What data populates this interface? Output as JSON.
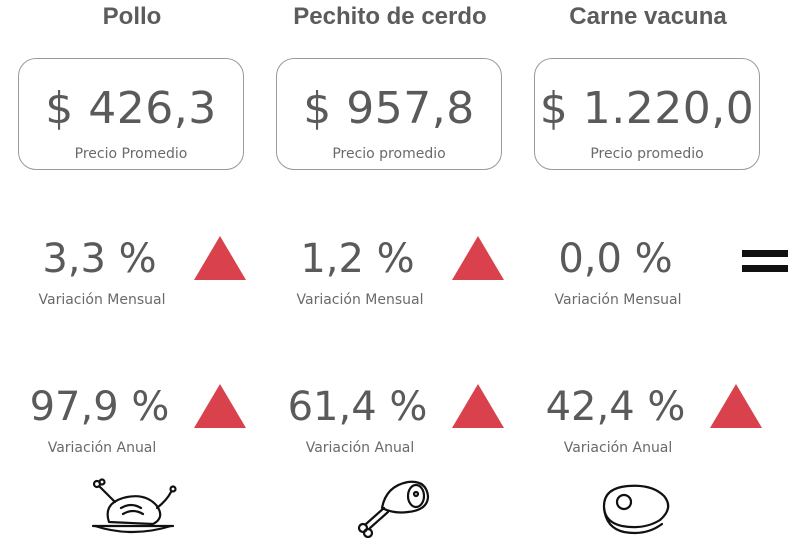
{
  "products": [
    {
      "name": "Pollo",
      "price": "$ 426,3",
      "price_label": "Precio Promedio",
      "monthly": {
        "value": "3,3 %",
        "label": "Variación Mensual",
        "trend": "up"
      },
      "annual": {
        "value": "97,9 %",
        "label": "Variación Anual",
        "trend": "up"
      },
      "icon": "chicken-icon"
    },
    {
      "name": "Pechito de cerdo",
      "price": "$ 957,8",
      "price_label": "Precio promedio",
      "monthly": {
        "value": "1,2 %",
        "label": "Variación Mensual",
        "trend": "up"
      },
      "annual": {
        "value": "61,4 %",
        "label": "Variación Anual",
        "trend": "up"
      },
      "icon": "ham-leg-icon"
    },
    {
      "name": "Carne vacuna",
      "price": "$ 1.220,0",
      "price_label": "Precio promedio",
      "monthly": {
        "value": "0,0 %",
        "label": "Variación Mensual",
        "trend": "equal"
      },
      "annual": {
        "value": "42,4 %",
        "label": "Variación Anual",
        "trend": "up"
      },
      "icon": "steak-icon"
    }
  ],
  "colors": {
    "up": "#d9414d",
    "equal": "#111111",
    "text": "#5a5a5a",
    "border": "#9a9a9a"
  }
}
